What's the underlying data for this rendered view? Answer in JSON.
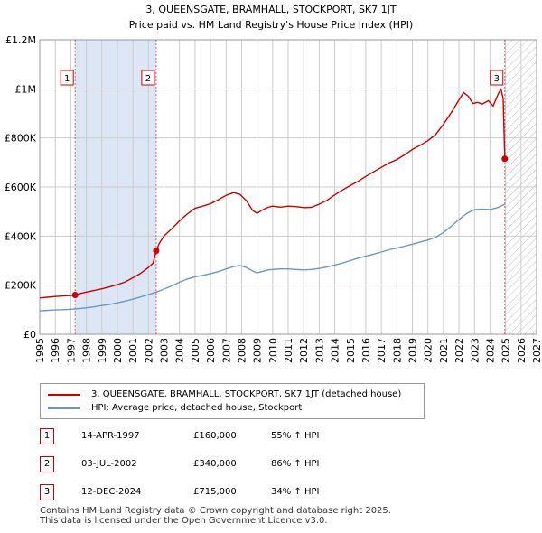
{
  "chart_data": {
    "type": "line",
    "title": "3, QUEENSGATE, BRAMHALL, STOCKPORT, SK7 1JT",
    "subtitle": "Price paid vs. HM Land Registry's House Price Index (HPI)",
    "xlim": [
      1995,
      2027
    ],
    "ylim": [
      0,
      1200000
    ],
    "x_ticks": [
      1995,
      1996,
      1997,
      1998,
      1999,
      2000,
      2001,
      2002,
      2003,
      2004,
      2005,
      2006,
      2007,
      2008,
      2009,
      2010,
      2011,
      2012,
      2013,
      2014,
      2015,
      2016,
      2017,
      2018,
      2019,
      2020,
      2021,
      2022,
      2023,
      2024,
      2025,
      2026,
      2027
    ],
    "y_ticks": [
      0,
      200000,
      400000,
      600000,
      800000,
      1000000,
      1200000
    ],
    "y_tick_labels": [
      "£0",
      "£200K",
      "£400K",
      "£600K",
      "£800K",
      "£1M",
      "£1.2M"
    ],
    "shaded_region": [
      1997.28,
      2002.5
    ],
    "future_hatch_from": 2025.0,
    "series": [
      {
        "name": "3, QUEENSGATE, BRAMHALL, STOCKPORT, SK7 1JT (detached house)",
        "color": "#cc0000",
        "x": [
          1995.0,
          1995.5,
          1996.0,
          1996.5,
          1997.0,
          1997.28,
          1997.6,
          1998.0,
          1998.5,
          1999.0,
          1999.5,
          2000.0,
          2000.5,
          2001.0,
          2001.5,
          2002.0,
          2002.3,
          2002.5,
          2002.7,
          2003.0,
          2003.5,
          2004.0,
          2004.5,
          2005.0,
          2005.5,
          2006.0,
          2006.5,
          2007.0,
          2007.5,
          2007.9,
          2008.3,
          2008.7,
          2009.0,
          2009.3,
          2009.7,
          2010.0,
          2010.5,
          2011.0,
          2011.5,
          2012.0,
          2012.5,
          2013.0,
          2013.5,
          2014.0,
          2014.5,
          2015.0,
          2015.5,
          2016.0,
          2016.5,
          2017.0,
          2017.5,
          2018.0,
          2018.5,
          2019.0,
          2019.5,
          2020.0,
          2020.5,
          2021.0,
          2021.5,
          2022.0,
          2022.3,
          2022.6,
          2022.9,
          2023.2,
          2023.5,
          2023.9,
          2024.2,
          2024.5,
          2024.7,
          2024.85,
          2024.95
        ],
        "values": [
          148000,
          151000,
          154000,
          156000,
          158000,
          160000,
          166000,
          172000,
          178000,
          185000,
          193000,
          202000,
          213000,
          230000,
          248000,
          272000,
          290000,
          340000,
          370000,
          400000,
          430000,
          462000,
          490000,
          513000,
          522000,
          532000,
          548000,
          566000,
          577000,
          570000,
          545000,
          505000,
          493000,
          505000,
          517000,
          522000,
          518000,
          522000,
          520000,
          516000,
          517000,
          530000,
          546000,
          568000,
          588000,
          606000,
          623000,
          643000,
          662000,
          680000,
          698000,
          712000,
          731000,
          753000,
          770000,
          789000,
          814000,
          856000,
          903000,
          955000,
          985000,
          970000,
          940000,
          945000,
          938000,
          952000,
          930000,
          975000,
          1000000,
          960000,
          715000
        ]
      },
      {
        "name": "HPI: Average price, detached house, Stockport",
        "color": "#6a96c6",
        "x": [
          1995.0,
          1995.5,
          1996.0,
          1996.5,
          1997.0,
          1997.5,
          1998.0,
          1998.5,
          1999.0,
          1999.5,
          2000.0,
          2000.5,
          2001.0,
          2001.5,
          2002.0,
          2002.5,
          2003.0,
          2003.5,
          2004.0,
          2004.5,
          2005.0,
          2005.5,
          2006.0,
          2006.5,
          2007.0,
          2007.5,
          2007.9,
          2008.3,
          2008.7,
          2009.0,
          2009.3,
          2009.7,
          2010.0,
          2010.5,
          2011.0,
          2011.5,
          2012.0,
          2012.5,
          2013.0,
          2013.5,
          2014.0,
          2014.5,
          2015.0,
          2015.5,
          2016.0,
          2016.5,
          2017.0,
          2017.5,
          2018.0,
          2018.5,
          2019.0,
          2019.5,
          2020.0,
          2020.5,
          2021.0,
          2021.5,
          2022.0,
          2022.5,
          2023.0,
          2023.5,
          2024.0,
          2024.5,
          2024.95
        ],
        "values": [
          95000,
          97000,
          99000,
          100000,
          102000,
          104000,
          108000,
          112000,
          117000,
          122000,
          128000,
          135000,
          143000,
          152000,
          162000,
          172000,
          184000,
          197000,
          212000,
          225000,
          234000,
          240000,
          247000,
          255000,
          266000,
          276000,
          280000,
          272000,
          258000,
          250000,
          255000,
          262000,
          264000,
          266000,
          266000,
          264000,
          262000,
          264000,
          268000,
          274000,
          282000,
          290000,
          300000,
          310000,
          318000,
          326000,
          335000,
          344000,
          351000,
          359000,
          367000,
          376000,
          384000,
          395000,
          415000,
          440000,
          468000,
          492000,
          508000,
          510000,
          508000,
          516000,
          530000
        ]
      }
    ],
    "transactions": [
      {
        "num": "1",
        "x": 1997.28,
        "price": 160000
      },
      {
        "num": "2",
        "x": 2002.5,
        "price": 340000
      },
      {
        "num": "3",
        "x": 2024.95,
        "price": 715000
      }
    ]
  },
  "legend": {
    "items": [
      {
        "label": "3, QUEENSGATE, BRAMHALL, STOCKPORT, SK7 1JT (detached house)",
        "color": "#cc0000"
      },
      {
        "label": "HPI: Average price, detached house, Stockport",
        "color": "#6a96c6"
      }
    ]
  },
  "table": {
    "rows": [
      {
        "num": "1",
        "date": "14-APR-1997",
        "price": "£160,000",
        "hpi": "55% ↑ HPI"
      },
      {
        "num": "2",
        "date": "03-JUL-2002",
        "price": "£340,000",
        "hpi": "86% ↑ HPI"
      },
      {
        "num": "3",
        "date": "12-DEC-2024",
        "price": "£715,000",
        "hpi": "34% ↑ HPI"
      }
    ]
  },
  "footer": {
    "line1": "Contains HM Land Registry data © Crown copyright and database right 2025.",
    "line2": "This data is licensed under the Open Government Licence v3.0."
  },
  "colors": {
    "accent_red": "#cc0000",
    "hpi_blue": "#6a96c6",
    "shade": "#dde6f5",
    "grid": "#cccccc"
  }
}
